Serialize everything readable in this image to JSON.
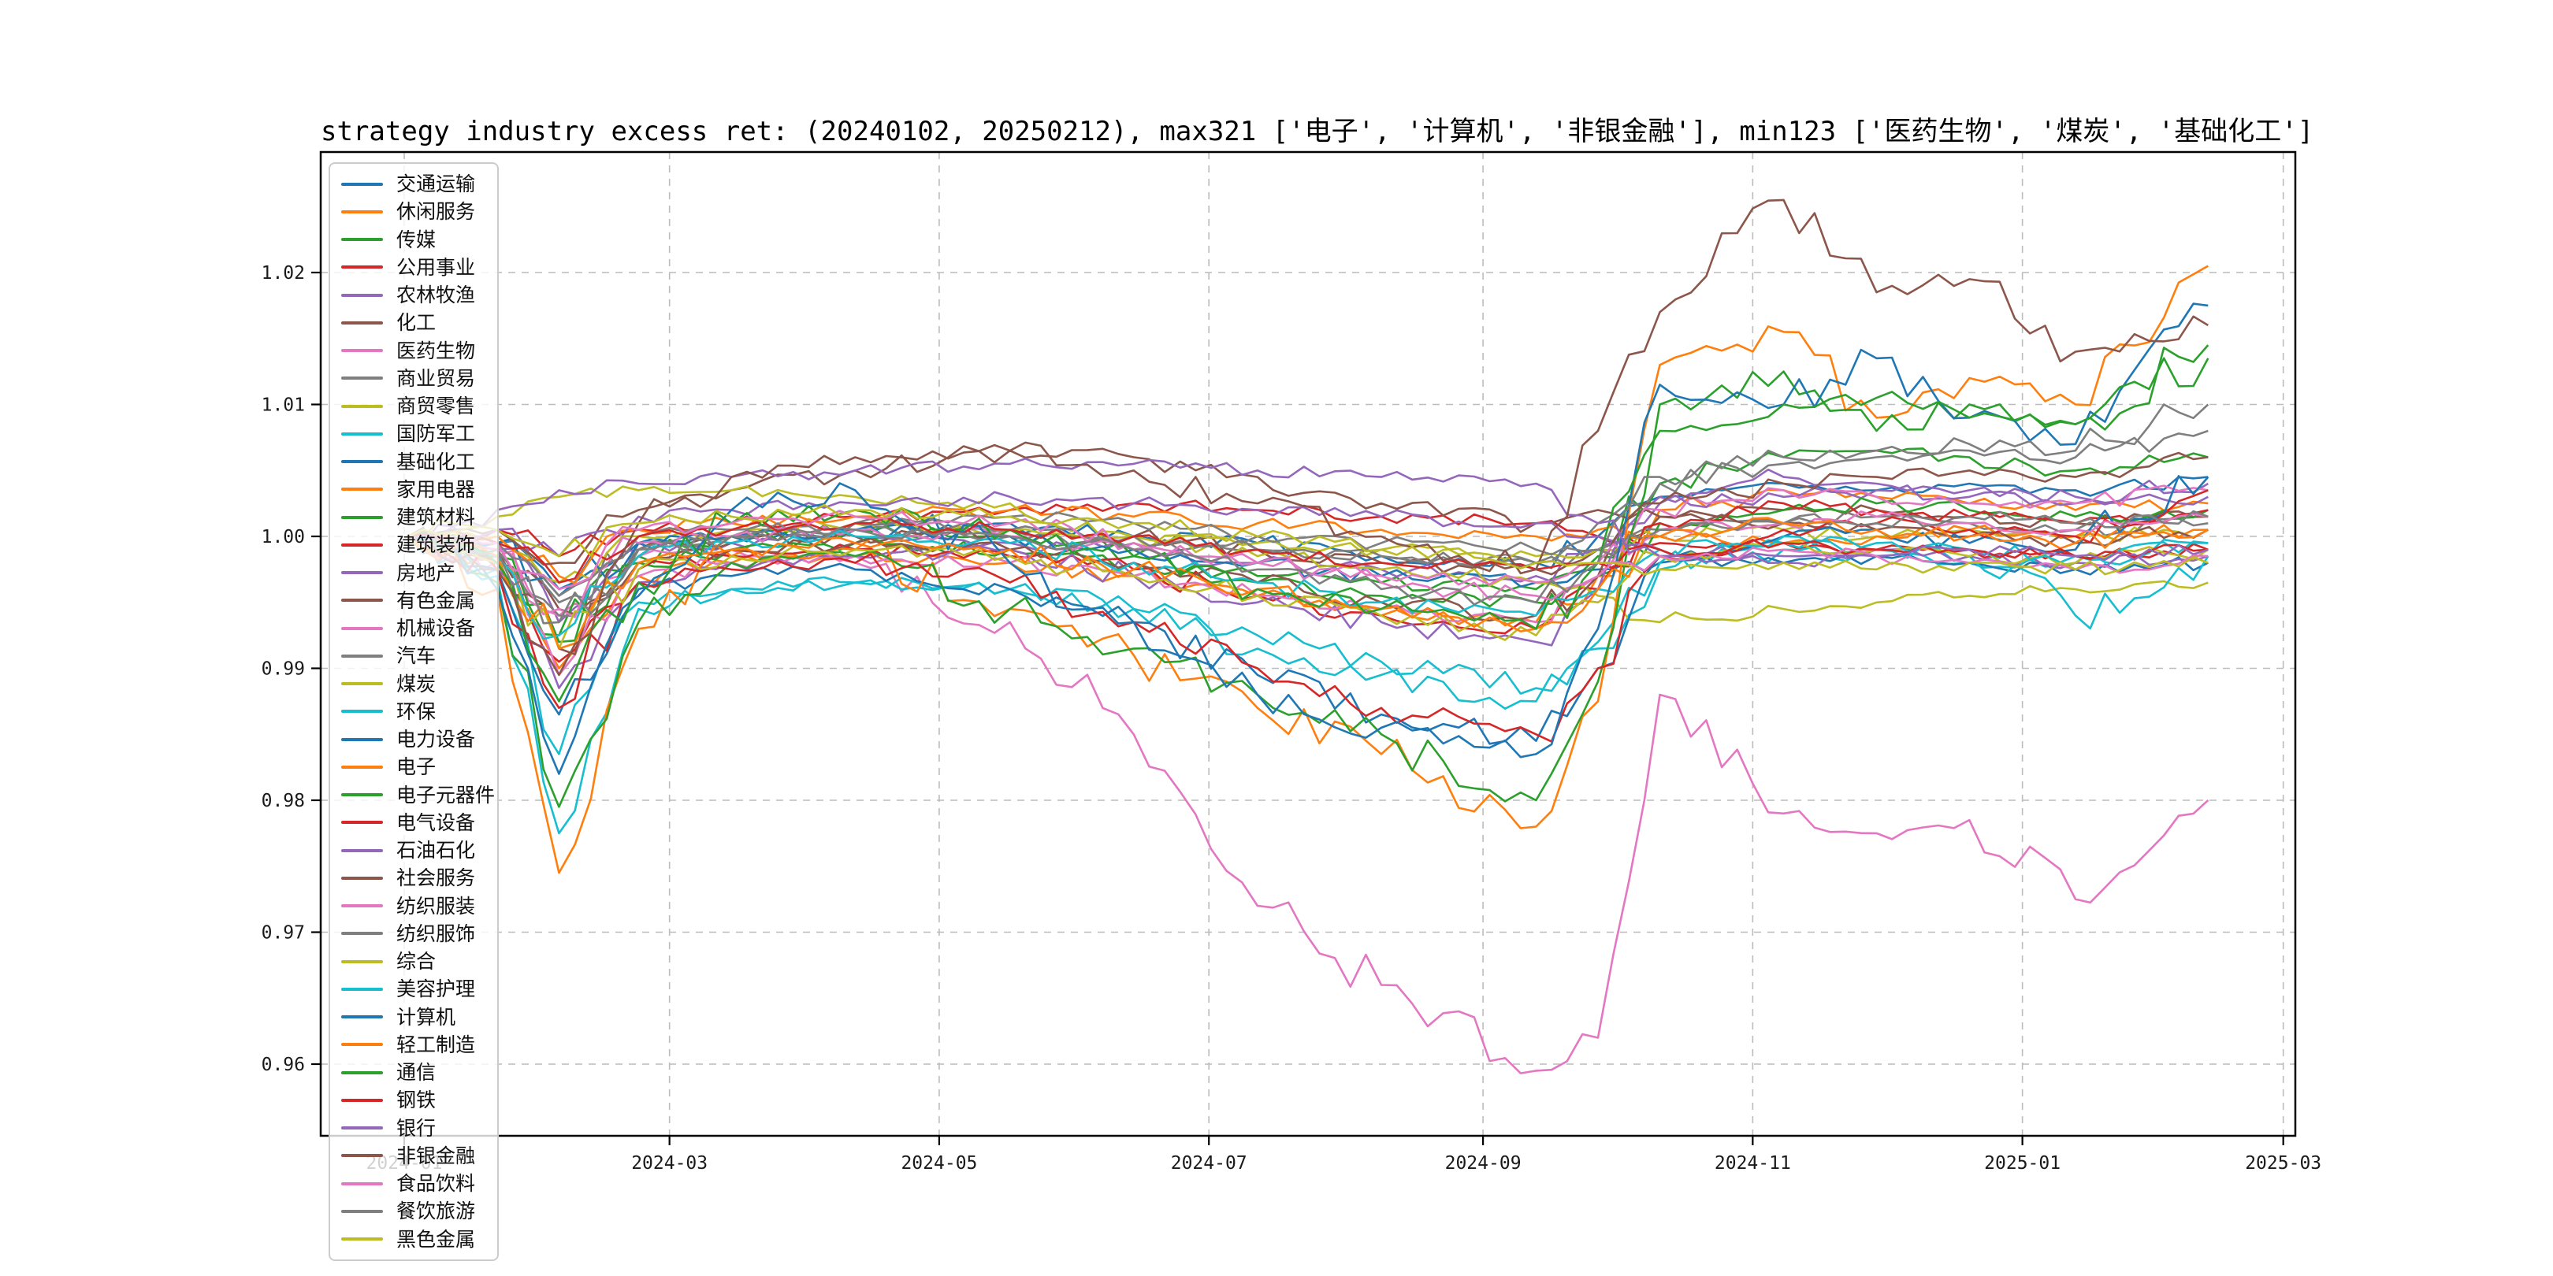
{
  "chart": {
    "background": "#ffffff",
    "spine_color": "#000000",
    "grid_color": "#bcbcbc",
    "tick_label_color": "#1a1a1a"
  },
  "chart_data": {
    "type": "line",
    "title": "strategy industry excess ret: (20240102, 20250212), max321 ['电子', '计算机', '非银金融'], min123 ['医药生物', '煤炭', '基础化工']",
    "xlabel": "",
    "ylabel": "",
    "grid": true,
    "legend_position": "upper left",
    "ylim": [
      0.9546,
      1.0291
    ],
    "xlim_dates": [
      "2023-12-13",
      "2025-03-06"
    ],
    "y_ticks": [
      0.96,
      0.97,
      0.98,
      0.99,
      1.0,
      1.01,
      1.02
    ],
    "x_tick_labels": [
      "2024-01",
      "2024-03",
      "2024-05",
      "2024-07",
      "2024-09",
      "2024-11",
      "2025-01",
      "2025-03"
    ],
    "x_dates": [
      "2024-01-02",
      "2024-01-22",
      "2024-02-05",
      "2024-02-23",
      "2024-03-15",
      "2024-04-12",
      "2024-05-17",
      "2024-06-14",
      "2024-07-12",
      "2024-08-09",
      "2024-09-13",
      "2024-09-27",
      "2024-10-11",
      "2024-11-08",
      "2024-11-29",
      "2024-12-20",
      "2025-01-13",
      "2025-02-12"
    ],
    "series": [
      {
        "name": "交通运输",
        "color": "#1f77b4",
        "values": [
          1.0,
          0.9995,
          0.996,
          0.9995,
          1.0,
          1.0005,
          1.001,
          1.0,
          0.9995,
          0.9985,
          0.998,
          1.0,
          1.003,
          1.004,
          1.0035,
          1.004,
          1.0035,
          1.0045
        ]
      },
      {
        "name": "休闲服务",
        "color": "#ff7f0e",
        "values": [
          1.0,
          0.998,
          0.99,
          0.997,
          0.998,
          0.9985,
          0.998,
          0.997,
          0.9955,
          0.994,
          0.9935,
          0.997,
          1.002,
          1.0035,
          1.003,
          1.0025,
          1.002,
          1.0025
        ]
      },
      {
        "name": "传媒",
        "color": "#2ca02c",
        "values": [
          1.0,
          0.9985,
          0.992,
          0.9985,
          1.0,
          1.0005,
          1.0,
          0.9985,
          0.997,
          0.9965,
          0.996,
          0.9985,
          1.004,
          1.006,
          1.0065,
          1.006,
          1.005,
          1.006
        ]
      },
      {
        "name": "公用事业",
        "color": "#d62728",
        "values": [
          1.0,
          1.0005,
          0.9985,
          1.0005,
          1.001,
          1.0015,
          1.002,
          1.0025,
          1.002,
          1.0015,
          1.001,
          1.0,
          0.9995,
          0.9995,
          0.999,
          0.999,
          0.9985,
          0.999
        ]
      },
      {
        "name": "农林牧渔",
        "color": "#9467bd",
        "values": [
          1.0,
          0.999,
          0.9935,
          0.999,
          0.9995,
          1.0,
          0.9995,
          0.999,
          0.998,
          0.9975,
          0.997,
          0.999,
          1.0025,
          1.003,
          1.0035,
          1.003,
          1.0025,
          1.003
        ]
      },
      {
        "name": "化工",
        "color": "#8c564b",
        "values": [
          1.0,
          0.999,
          0.9945,
          0.999,
          0.9995,
          1.0,
          1.0005,
          1.0,
          0.999,
          0.998,
          0.9975,
          0.999,
          1.0015,
          1.002,
          1.002,
          1.0015,
          1.001,
          1.0015
        ]
      },
      {
        "name": "医药生物",
        "color": "#e377c2",
        "values": [
          1.0,
          0.9985,
          0.994,
          0.9985,
          0.999,
          0.998,
          0.9935,
          0.985,
          0.972,
          0.966,
          0.9595,
          0.962,
          0.988,
          0.979,
          0.9775,
          0.9785,
          0.9725,
          0.98
        ]
      },
      {
        "name": "商业贸易",
        "color": "#7f7f7f",
        "values": [
          1.0,
          0.9995,
          0.995,
          0.9995,
          1.0,
          1.0005,
          1.0,
          0.9995,
          0.999,
          0.9985,
          0.998,
          0.999,
          1.0005,
          1.001,
          1.0015,
          1.001,
          1.0005,
          1.001
        ]
      },
      {
        "name": "商贸零售",
        "color": "#bcbd22",
        "values": [
          1.0,
          1.0,
          0.9965,
          1.0,
          1.0005,
          1.001,
          1.0005,
          1.0,
          0.9995,
          0.999,
          0.9985,
          0.999,
          1.0,
          1.0005,
          1.0,
          1.0005,
          1.0,
          1.0005
        ]
      },
      {
        "name": "国防军工",
        "color": "#17becf",
        "values": [
          1.0,
          0.997,
          0.9775,
          0.9945,
          0.996,
          0.9965,
          0.996,
          0.9945,
          0.9915,
          0.9895,
          0.9875,
          0.9915,
          0.9975,
          0.999,
          0.9985,
          0.998,
          0.998,
          0.9995
        ]
      },
      {
        "name": "基础化工",
        "color": "#1f77b4",
        "values": [
          1.0,
          0.9995,
          0.9955,
          0.9995,
          1.0,
          1.0005,
          1.0,
          0.999,
          0.998,
          0.997,
          0.9965,
          0.9975,
          0.998,
          0.998,
          0.9985,
          0.998,
          0.9975,
          0.998
        ]
      },
      {
        "name": "家用电器",
        "color": "#ff7f0e",
        "values": [
          1.0,
          1.0,
          0.997,
          1.0005,
          1.001,
          1.0015,
          1.002,
          1.0015,
          1.001,
          1.0005,
          1.0,
          1.0005,
          1.0,
          0.9995,
          1.0,
          1.0005,
          1.0,
          1.0005
        ]
      },
      {
        "name": "建筑材料",
        "color": "#2ca02c",
        "values": [
          1.0,
          0.9985,
          0.9925,
          0.998,
          0.999,
          0.9995,
          0.999,
          0.998,
          0.9965,
          0.9955,
          0.995,
          0.997,
          1.001,
          1.002,
          1.0025,
          1.002,
          1.0015,
          1.002
        ]
      },
      {
        "name": "建筑装饰",
        "color": "#d62728",
        "values": [
          1.0,
          0.998,
          0.9905,
          0.9975,
          0.9985,
          0.999,
          0.9985,
          0.9975,
          0.9955,
          0.994,
          0.993,
          0.996,
          1.001,
          1.0025,
          1.002,
          1.0015,
          1.001,
          1.002
        ]
      },
      {
        "name": "房地产",
        "color": "#9467bd",
        "values": [
          1.0,
          0.9975,
          0.9885,
          0.9965,
          0.998,
          0.9985,
          0.999,
          0.997,
          0.995,
          0.9935,
          0.992,
          0.996,
          1.003,
          1.0045,
          1.004,
          1.0035,
          1.003,
          1.004
        ]
      },
      {
        "name": "有色金属",
        "color": "#8c564b",
        "values": [
          1.0,
          1.0005,
          0.998,
          1.002,
          1.0035,
          1.005,
          1.0065,
          1.006,
          1.0045,
          1.0025,
          1.001,
          1.002,
          1.0015,
          1.001,
          1.0005,
          1.0,
          0.9995,
          1.0005
        ]
      },
      {
        "name": "机械设备",
        "color": "#e377c2",
        "values": [
          1.0,
          0.998,
          0.9895,
          0.997,
          0.998,
          0.9985,
          0.998,
          0.997,
          0.9955,
          0.9945,
          0.9935,
          0.997,
          1.002,
          1.0035,
          1.003,
          1.0025,
          1.0025,
          1.0035
        ]
      },
      {
        "name": "汽车",
        "color": "#7f7f7f",
        "values": [
          1.0,
          0.999,
          0.994,
          0.999,
          1.0,
          1.001,
          1.0015,
          1.001,
          1.0,
          0.9995,
          0.999,
          1.001,
          1.004,
          1.0055,
          1.006,
          1.0065,
          1.006,
          1.008
        ]
      },
      {
        "name": "煤炭",
        "color": "#bcbd22",
        "values": [
          1.0,
          1.0015,
          1.003,
          1.0035,
          1.0035,
          1.003,
          1.0025,
          1.0,
          0.9985,
          0.9975,
          0.9965,
          0.9955,
          0.9935,
          0.9945,
          0.995,
          0.9955,
          0.996,
          0.9965
        ]
      },
      {
        "name": "环保",
        "color": "#17becf",
        "values": [
          1.0,
          0.9975,
          0.9835,
          0.995,
          0.996,
          0.9965,
          0.996,
          0.9945,
          0.9925,
          0.9905,
          0.9885,
          0.992,
          0.998,
          0.9995,
          0.999,
          0.9985,
          0.994,
          0.9985
        ]
      },
      {
        "name": "电力设备",
        "color": "#1f77b4",
        "values": [
          1.0,
          0.9975,
          0.9865,
          0.996,
          0.997,
          0.9975,
          0.996,
          0.9935,
          0.9895,
          0.9865,
          0.9845,
          0.99,
          0.9985,
          1.0,
          1.0005,
          0.9995,
          0.999,
          1.0045
        ]
      },
      {
        "name": "电子",
        "color": "#ff7f0e",
        "values": [
          1.0,
          0.996,
          0.9745,
          0.993,
          0.9985,
          0.999,
          0.9945,
          0.991,
          0.987,
          0.9835,
          0.978,
          0.9875,
          1.013,
          1.0155,
          1.009,
          1.012,
          1.01,
          1.0205
        ]
      },
      {
        "name": "电子元器件",
        "color": "#2ca02c",
        "values": [
          1.0,
          0.9965,
          0.9795,
          0.9935,
          0.998,
          0.9985,
          0.9945,
          0.9915,
          0.988,
          0.985,
          0.98,
          0.989,
          1.01,
          1.0125,
          1.008,
          1.01,
          1.0085,
          1.0145
        ]
      },
      {
        "name": "电气设备",
        "color": "#d62728",
        "values": [
          1.0,
          0.9975,
          0.987,
          0.9965,
          0.9975,
          0.998,
          0.9965,
          0.9935,
          0.99,
          0.987,
          0.985,
          0.99,
          0.9985,
          1.0005,
          1.001,
          1.0005,
          1.0,
          1.0035
        ]
      },
      {
        "name": "石油石化",
        "color": "#9467bd",
        "values": [
          1.0,
          1.0005,
          0.9985,
          1.0015,
          1.002,
          1.0025,
          1.003,
          1.0025,
          1.002,
          1.0015,
          1.001,
          1.0,
          0.999,
          0.9985,
          0.999,
          0.9985,
          0.998,
          0.9985
        ]
      },
      {
        "name": "社会服务",
        "color": "#8c564b",
        "values": [
          1.0,
          0.9985,
          0.9915,
          0.998,
          0.999,
          0.9995,
          0.999,
          0.998,
          0.9965,
          0.995,
          0.994,
          0.997,
          1.0025,
          1.004,
          1.0045,
          1.005,
          1.0045,
          1.006
        ]
      },
      {
        "name": "纺织服装",
        "color": "#e377c2",
        "values": [
          1.0,
          0.999,
          0.9945,
          0.9995,
          1.0,
          1.0005,
          1.0,
          0.999,
          0.998,
          0.997,
          0.9965,
          0.998,
          1.0005,
          1.001,
          1.0015,
          1.001,
          1.0005,
          1.0015
        ]
      },
      {
        "name": "纺织服饰",
        "color": "#7f7f7f",
        "values": [
          1.0,
          0.9995,
          0.9955,
          1.0,
          1.0005,
          1.001,
          1.0005,
          1.0,
          0.999,
          0.9985,
          0.998,
          0.999,
          1.0005,
          1.001,
          1.001,
          1.0015,
          1.001,
          1.0015
        ]
      },
      {
        "name": "综合",
        "color": "#bcbd22",
        "values": [
          1.0,
          0.998,
          0.9915,
          0.9975,
          0.9985,
          0.999,
          0.9985,
          0.997,
          0.9955,
          0.994,
          0.9925,
          0.995,
          0.9985,
          0.9995,
          0.999,
          0.9985,
          0.998,
          0.999
        ]
      },
      {
        "name": "美容护理",
        "color": "#17becf",
        "values": [
          1.0,
          0.9985,
          0.9925,
          0.9985,
          0.9995,
          1.0,
          0.9995,
          0.998,
          0.9965,
          0.995,
          0.994,
          0.996,
          0.999,
          1.0,
          0.9995,
          0.999,
          0.9985,
          0.9995
        ]
      },
      {
        "name": "计算机",
        "color": "#1f77b4",
        "values": [
          1.0,
          0.996,
          0.982,
          0.9955,
          1.002,
          1.0035,
          0.998,
          0.9935,
          0.988,
          0.9855,
          0.9835,
          0.993,
          1.0115,
          1.01,
          1.0135,
          1.009,
          1.007,
          1.0175
        ]
      },
      {
        "name": "轻工制造",
        "color": "#ff7f0e",
        "values": [
          1.0,
          0.9985,
          0.9915,
          0.998,
          0.999,
          0.9995,
          0.999,
          0.9975,
          0.996,
          0.9945,
          0.993,
          0.996,
          1.0,
          1.001,
          1.0005,
          1.0,
          0.9995,
          1.0005
        ]
      },
      {
        "name": "通信",
        "color": "#2ca02c",
        "values": [
          1.0,
          0.998,
          0.9875,
          0.9965,
          1.001,
          1.002,
          1.0005,
          0.9985,
          0.996,
          0.9945,
          0.993,
          0.998,
          1.008,
          1.01,
          1.0105,
          1.009,
          1.0085,
          1.0135
        ]
      },
      {
        "name": "钢铁",
        "color": "#d62728",
        "values": [
          1.0,
          0.9995,
          0.9965,
          1.0,
          1.0005,
          1.001,
          1.0005,
          1.0,
          0.999,
          0.998,
          0.9975,
          0.998,
          0.999,
          0.9995,
          0.999,
          0.999,
          0.9985,
          0.999
        ]
      },
      {
        "name": "银行",
        "color": "#9467bd",
        "values": [
          1.0,
          1.002,
          1.0035,
          1.004,
          1.0045,
          1.005,
          1.0055,
          1.0055,
          1.005,
          1.0045,
          1.004,
          1.001,
          0.9985,
          0.998,
          0.9985,
          0.999,
          0.9985,
          0.999
        ]
      },
      {
        "name": "非银金融",
        "color": "#8c564b",
        "values": [
          1.0,
          0.9975,
          0.9895,
          1.001,
          1.0045,
          1.006,
          1.0065,
          1.005,
          1.0025,
          1.0,
          0.9975,
          1.008,
          1.017,
          1.0255,
          1.0185,
          1.0195,
          1.014,
          1.016
        ]
      },
      {
        "name": "食品饮料",
        "color": "#e377c2",
        "values": [
          1.0,
          0.9995,
          0.996,
          1.0005,
          1.001,
          1.0015,
          1.001,
          0.9995,
          0.998,
          0.9965,
          0.9955,
          0.997,
          0.9985,
          0.999,
          0.9985,
          0.998,
          0.9975,
          0.9985
        ]
      },
      {
        "name": "餐饮旅游",
        "color": "#7f7f7f",
        "values": [
          1.0,
          0.999,
          0.9935,
          0.999,
          1.0,
          1.0005,
          1.0,
          0.999,
          0.9975,
          0.996,
          0.995,
          0.998,
          1.0045,
          1.006,
          1.0065,
          1.007,
          1.0065,
          1.01
        ]
      },
      {
        "name": "黑色金属",
        "color": "#bcbd22",
        "values": [
          1.0,
          1.0005,
          0.9985,
          1.001,
          1.0015,
          1.002,
          1.0015,
          1.001,
          1.0,
          0.999,
          0.998,
          0.998,
          0.9975,
          0.998,
          0.9975,
          0.998,
          0.9975,
          0.998
        ]
      }
    ]
  }
}
